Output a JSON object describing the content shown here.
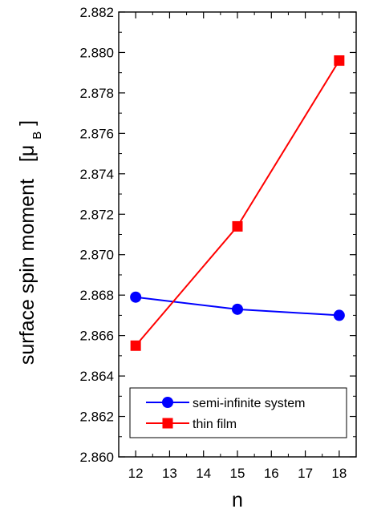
{
  "chart_data": {
    "type": "line",
    "x": [
      12,
      15,
      18
    ],
    "series": [
      {
        "name": "semi-infinite system",
        "values": [
          2.8679,
          2.8673,
          2.867
        ],
        "color": "#0000ff",
        "marker": "circle"
      },
      {
        "name": "thin film",
        "values": [
          2.8655,
          2.8714,
          2.8796
        ],
        "color": "#ff0000",
        "marker": "square"
      }
    ],
    "xlabel": "n",
    "ylabel_main": "surface spin moment",
    "ylabel_unit_prefix": "[μ",
    "ylabel_unit_sub": "B",
    "ylabel_unit_suffix": "]",
    "xlim": [
      11.5,
      18.5
    ],
    "ylim": [
      2.86,
      2.882
    ],
    "xticks": [
      "12",
      "13",
      "14",
      "15",
      "16",
      "17",
      "18"
    ],
    "yticks": [
      "2.860",
      "2.862",
      "2.864",
      "2.866",
      "2.868",
      "2.870",
      "2.872",
      "2.874",
      "2.876",
      "2.878",
      "2.880",
      "2.882"
    ],
    "grid": false,
    "legend_position": "bottom-right"
  }
}
